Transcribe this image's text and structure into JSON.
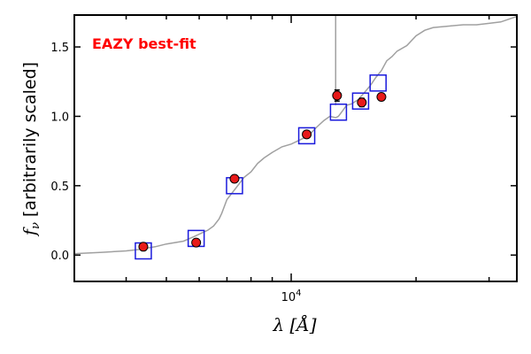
{
  "chart_data": {
    "type": "scatter",
    "annotation": "EAZY best-fit",
    "xlabel": "λ [Å]",
    "ylabel_italic": "f",
    "ylabel_sub": "ν",
    "ylabel_rest": " [arbitrarily scaled]",
    "x_scale": "log",
    "xlim": [
      3000,
      35000
    ],
    "ylim": [
      -0.19,
      1.73
    ],
    "grid": false,
    "y_ticks": [
      0.0,
      0.5,
      1.0,
      1.5
    ],
    "y_tick_labels": [
      "0.0",
      "0.5",
      "1.0",
      "1.5"
    ],
    "x_major_ticks": [
      10000
    ],
    "x_major_label_base": "10",
    "x_major_label_exp": "4",
    "x_minor_ticks": [
      4000,
      5000,
      6000,
      7000,
      8000,
      9000,
      20000,
      30000
    ],
    "colors": {
      "observed": "#e81a1a",
      "model_box": "#1a1adc",
      "template": "#a0a0a0",
      "annotation": "#ff0000"
    },
    "series": [
      {
        "kind": "observed_photometry",
        "x": [
          4400,
          5900,
          7300,
          10900,
          12900,
          14800,
          16500
        ],
        "y": [
          0.06,
          0.09,
          0.55,
          0.87,
          1.15,
          1.1,
          1.14
        ],
        "yerr": [
          0.01,
          0.01,
          0.01,
          0.01,
          0.04,
          0.03,
          0.01
        ]
      },
      {
        "kind": "model_photometry",
        "x": [
          4400,
          5900,
          7300,
          10900,
          13000,
          14700,
          16200
        ],
        "y": [
          0.03,
          0.12,
          0.5,
          0.86,
          1.03,
          1.11,
          1.24
        ]
      },
      {
        "kind": "template_spectrum",
        "x": [
          3000,
          3500,
          4000,
          4300,
          4700,
          5000,
          5500,
          5800,
          6100,
          6300,
          6500,
          6700,
          6800,
          7000,
          7300,
          7700,
          8000,
          8300,
          8600,
          9000,
          9500,
          10000,
          10500,
          11000,
          11500,
          12000,
          12400,
          12800,
          13000,
          13300,
          13600,
          14000,
          14500,
          15000,
          15500,
          16000,
          16500,
          17000,
          17500,
          18000,
          19000,
          20000,
          21000,
          22000,
          24000,
          26000,
          28000,
          30000,
          32000,
          35000
        ],
        "y": [
          0.01,
          0.02,
          0.03,
          0.04,
          0.06,
          0.08,
          0.1,
          0.13,
          0.16,
          0.18,
          0.21,
          0.26,
          0.3,
          0.4,
          0.47,
          0.56,
          0.6,
          0.66,
          0.7,
          0.74,
          0.78,
          0.8,
          0.83,
          0.86,
          0.92,
          0.97,
          1.0,
          0.99,
          1.0,
          1.04,
          1.08,
          1.09,
          1.12,
          1.17,
          1.22,
          1.28,
          1.33,
          1.4,
          1.43,
          1.47,
          1.51,
          1.58,
          1.62,
          1.64,
          1.65,
          1.66,
          1.66,
          1.67,
          1.68,
          1.72
        ]
      }
    ],
    "emission_line": {
      "x": 12800,
      "y_from": 1.08,
      "y_to": 1.73
    }
  }
}
